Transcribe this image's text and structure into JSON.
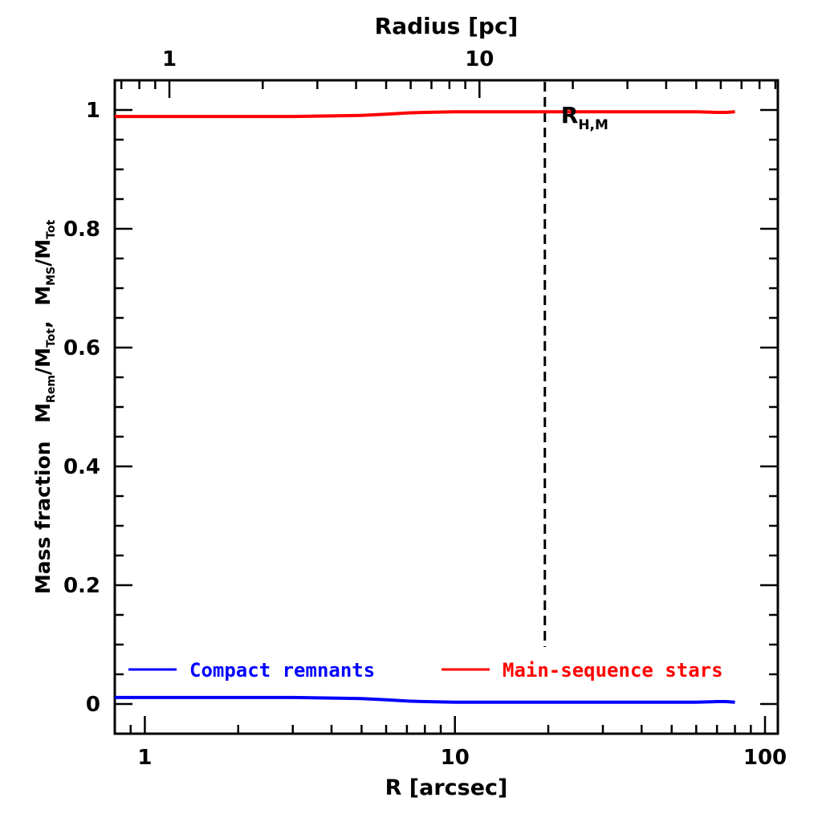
{
  "chart_data": {
    "type": "line",
    "xlabel": "R [arcsec]",
    "x2label": "Radius [pc]",
    "ylabel_prefix": "Mass fraction",
    "ylabel_ratio_1": {
      "num": "M",
      "num_sub": "Rem",
      "den": "M",
      "den_sub": "Tot"
    },
    "ylabel_separator": ",",
    "ylabel_ratio_2": {
      "num": "M",
      "num_sub": "MS",
      "den": "M",
      "den_sub": "Tot"
    },
    "x_scale": "log",
    "xlim": [
      0.8,
      110
    ],
    "ylim": [
      -0.05,
      1.05
    ],
    "x_ticks": [
      {
        "value": 1,
        "label": "1"
      },
      {
        "value": 10,
        "label": "10"
      },
      {
        "value": 100,
        "label": "100"
      }
    ],
    "x2_ticks": [
      {
        "x_value": 1.2,
        "label": "1"
      },
      {
        "x_value": 12,
        "label": "10"
      }
    ],
    "y_ticks": [
      {
        "value": 0,
        "label": "0"
      },
      {
        "value": 0.2,
        "label": "0.2"
      },
      {
        "value": 0.4,
        "label": "0.4"
      },
      {
        "value": 0.6,
        "label": "0.6"
      },
      {
        "value": 0.8,
        "label": "0.8"
      },
      {
        "value": 1,
        "label": "1"
      }
    ],
    "series": [
      {
        "name": "Compact remnants",
        "color": "#0000ff",
        "x": [
          0.8,
          1.0,
          1.5,
          2.0,
          3.0,
          4.0,
          5.0,
          6.0,
          7.0,
          8.0,
          10.0,
          12.0,
          15.0,
          20.0,
          30.0,
          40.0,
          50.0,
          60.0,
          70.0,
          75.0,
          80.0
        ],
        "y": [
          0.011,
          0.011,
          0.011,
          0.011,
          0.011,
          0.01,
          0.009,
          0.007,
          0.005,
          0.004,
          0.003,
          0.003,
          0.003,
          0.003,
          0.003,
          0.003,
          0.003,
          0.003,
          0.004,
          0.004,
          0.003
        ]
      },
      {
        "name": "Main-sequence stars",
        "color": "#ff0000",
        "x": [
          0.8,
          1.0,
          1.5,
          2.0,
          3.0,
          4.0,
          5.0,
          6.0,
          7.0,
          8.0,
          10.0,
          12.0,
          15.0,
          20.0,
          30.0,
          40.0,
          50.0,
          60.0,
          70.0,
          75.0,
          80.0
        ],
        "y": [
          0.989,
          0.989,
          0.989,
          0.989,
          0.989,
          0.99,
          0.991,
          0.993,
          0.995,
          0.996,
          0.997,
          0.997,
          0.997,
          0.997,
          0.997,
          0.997,
          0.997,
          0.997,
          0.996,
          0.996,
          0.997
        ]
      }
    ],
    "annotation": {
      "text": "R",
      "sub": "H,M",
      "x": 19.5
    },
    "vline_x": 19.5,
    "legend_placement": "bottom"
  }
}
